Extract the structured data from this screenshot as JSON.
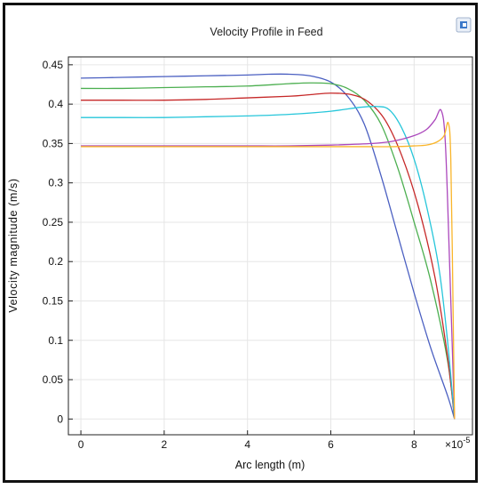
{
  "chart_data": {
    "type": "line",
    "title": "Velocity Profile in Feed",
    "xlabel": "Arc length (m)",
    "ylabel": "Velocity magnitude (m/s)",
    "x_multiplier_label": "×10",
    "x_multiplier_exponent": "-5",
    "xlim": [
      -0.3,
      9.4
    ],
    "ylim": [
      -0.02,
      0.46
    ],
    "xticks": [
      0,
      2,
      4,
      6,
      8
    ],
    "xtick_labels": [
      "0",
      "2",
      "4",
      "6",
      "8"
    ],
    "yticks": [
      0,
      0.05,
      0.1,
      0.15,
      0.2,
      0.25,
      0.3,
      0.35,
      0.4,
      0.45
    ],
    "ytick_labels": [
      "0",
      "0.05",
      "0.1",
      "0.15",
      "0.2",
      "0.25",
      "0.3",
      "0.35",
      "0.4",
      "0.45"
    ],
    "grid": true,
    "series": [
      {
        "color": "#4a5fc1",
        "x": [
          0,
          1,
          2,
          3,
          4,
          4.5,
          5,
          5.5,
          6,
          6.4,
          6.8,
          7.2,
          7.6,
          8.0,
          8.4,
          8.8,
          8.97
        ],
        "y": [
          0.433,
          0.434,
          0.435,
          0.436,
          0.437,
          0.438,
          0.438,
          0.436,
          0.428,
          0.41,
          0.375,
          0.31,
          0.235,
          0.16,
          0.09,
          0.03,
          0.0
        ]
      },
      {
        "color": "#4caf50",
        "x": [
          0,
          1,
          2,
          3,
          4,
          5,
          5.5,
          6,
          6.4,
          6.8,
          7.2,
          7.6,
          8.0,
          8.4,
          8.8,
          8.97
        ],
        "y": [
          0.42,
          0.42,
          0.421,
          0.422,
          0.423,
          0.426,
          0.427,
          0.426,
          0.42,
          0.405,
          0.375,
          0.32,
          0.25,
          0.175,
          0.075,
          0.0
        ]
      },
      {
        "color": "#c62828",
        "x": [
          0,
          1,
          2,
          3,
          4,
          5,
          5.5,
          6,
          6.5,
          6.9,
          7.3,
          7.7,
          8.1,
          8.5,
          8.8,
          8.97
        ],
        "y": [
          0.405,
          0.405,
          0.405,
          0.406,
          0.408,
          0.41,
          0.412,
          0.414,
          0.412,
          0.403,
          0.38,
          0.335,
          0.27,
          0.18,
          0.08,
          0.0
        ]
      },
      {
        "color": "#26c6da",
        "x": [
          0,
          1,
          2,
          3,
          4,
          5,
          6,
          6.7,
          7.1,
          7.4,
          7.7,
          8.0,
          8.3,
          8.6,
          8.8,
          8.97
        ],
        "y": [
          0.383,
          0.383,
          0.383,
          0.384,
          0.385,
          0.387,
          0.391,
          0.396,
          0.397,
          0.393,
          0.37,
          0.33,
          0.27,
          0.19,
          0.1,
          0.0
        ]
      },
      {
        "color": "#ab47bc",
        "x": [
          0,
          1,
          2,
          3,
          4,
          5,
          6,
          7,
          7.5,
          8.0,
          8.3,
          8.5,
          8.65,
          8.75,
          8.85,
          8.97
        ],
        "y": [
          0.347,
          0.347,
          0.347,
          0.347,
          0.347,
          0.347,
          0.348,
          0.35,
          0.353,
          0.36,
          0.368,
          0.38,
          0.392,
          0.35,
          0.2,
          0.0
        ]
      },
      {
        "color": "#f9b52a",
        "x": [
          0,
          2,
          4,
          6,
          7,
          7.5,
          8.0,
          8.3,
          8.55,
          8.72,
          8.82,
          8.88,
          8.94,
          8.97
        ],
        "y": [
          0.346,
          0.346,
          0.346,
          0.346,
          0.346,
          0.346,
          0.347,
          0.348,
          0.352,
          0.36,
          0.376,
          0.33,
          0.12,
          0.0
        ]
      }
    ]
  }
}
